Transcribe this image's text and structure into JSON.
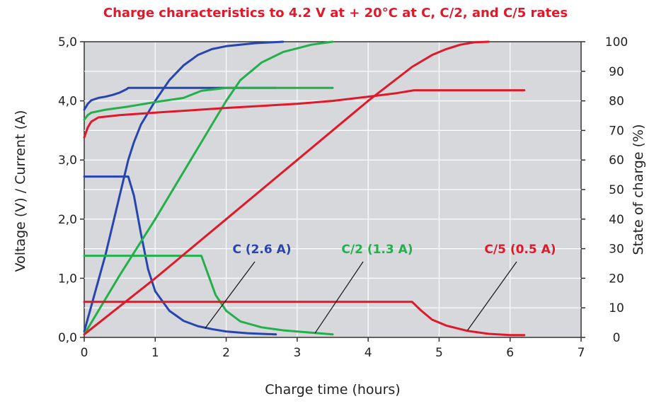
{
  "chart_data": {
    "type": "line",
    "title": "Charge characteristics to 4.2 V at + 20°C at C, C/2, and C/5 rates",
    "xlabel": "Charge time (hours)",
    "ylabel": "Voltage (V) / Current (A)",
    "y2label": "State of charge (%)",
    "xlim": [
      0,
      7
    ],
    "ylim": [
      0,
      5
    ],
    "y2lim": [
      0,
      100
    ],
    "x_ticks": [
      "0",
      "1",
      "2",
      "3",
      "4",
      "5",
      "6",
      "7"
    ],
    "y_ticks": [
      "0,0",
      "1,0",
      "2,0",
      "3,0",
      "4,0",
      "5,0"
    ],
    "y2_ticks": [
      "0",
      "10",
      "20",
      "30",
      "40",
      "50",
      "60",
      "70",
      "80",
      "90",
      "100"
    ],
    "grid": true,
    "colors": {
      "C": "#2745b0",
      "C/2": "#22b04b",
      "C/5": "#e0182a",
      "title": "#e0182a",
      "plot_bg": "#d6d8dc",
      "grid": "#ffffff"
    },
    "annotations": [
      {
        "text": "C (2.6 A)",
        "series_group": "C",
        "target": [
          1.7,
          0.15
        ]
      },
      {
        "text": "C/2 (1.3 A)",
        "series_group": "C/2",
        "target": [
          3.25,
          0.07
        ]
      },
      {
        "text": "C/5 (0.5 A)",
        "series_group": "C/5",
        "target": [
          5.4,
          0.12
        ]
      }
    ],
    "series": [
      {
        "group": "C",
        "quantity": "voltage",
        "axis": "left",
        "x": [
          0,
          0.05,
          0.1,
          0.2,
          0.3,
          0.4,
          0.5,
          0.6,
          0.62,
          1.0,
          2.0,
          2.7
        ],
        "y": [
          3.85,
          3.95,
          4.01,
          4.05,
          4.07,
          4.1,
          4.14,
          4.2,
          4.22,
          4.22,
          4.22,
          4.22
        ]
      },
      {
        "group": "C",
        "quantity": "current",
        "axis": "left",
        "x": [
          0,
          0.55,
          0.62,
          0.7,
          0.8,
          0.9,
          1.0,
          1.2,
          1.4,
          1.6,
          1.8,
          2.0,
          2.3,
          2.7
        ],
        "y": [
          2.72,
          2.72,
          2.72,
          2.4,
          1.75,
          1.15,
          0.78,
          0.45,
          0.28,
          0.19,
          0.14,
          0.1,
          0.07,
          0.05
        ]
      },
      {
        "group": "C",
        "quantity": "state_of_charge",
        "axis": "right",
        "x": [
          0,
          0.3,
          0.5,
          0.62,
          0.7,
          0.8,
          1.0,
          1.2,
          1.4,
          1.6,
          1.8,
          2.0,
          2.4,
          2.8
        ],
        "y": [
          2,
          28,
          48,
          60,
          66,
          72,
          80,
          87,
          92,
          95.5,
          97.5,
          98.5,
          99.5,
          100
        ]
      },
      {
        "group": "C/2",
        "quantity": "voltage",
        "axis": "left",
        "x": [
          0,
          0.05,
          0.1,
          0.3,
          0.6,
          1.0,
          1.4,
          1.65,
          2.0,
          3.0,
          3.5
        ],
        "y": [
          3.68,
          3.76,
          3.8,
          3.85,
          3.9,
          3.98,
          4.05,
          4.17,
          4.22,
          4.22,
          4.22
        ]
      },
      {
        "group": "C/2",
        "quantity": "current",
        "axis": "left",
        "x": [
          0,
          1.0,
          1.65,
          1.75,
          1.85,
          2.0,
          2.2,
          2.5,
          2.8,
          3.1,
          3.5
        ],
        "y": [
          1.38,
          1.38,
          1.38,
          1.05,
          0.72,
          0.45,
          0.27,
          0.17,
          0.12,
          0.09,
          0.05
        ]
      },
      {
        "group": "C/2",
        "quantity": "state_of_charge",
        "axis": "right",
        "x": [
          0,
          0.5,
          1.0,
          1.5,
          1.65,
          1.8,
          2.0,
          2.2,
          2.5,
          2.8,
          3.2,
          3.5
        ],
        "y": [
          1,
          21,
          40,
          60,
          66,
          72,
          80,
          87,
          93,
          96.5,
          99,
          100
        ]
      },
      {
        "group": "C/5",
        "quantity": "voltage",
        "axis": "left",
        "x": [
          0,
          0.05,
          0.1,
          0.2,
          0.5,
          1.0,
          2.0,
          3.0,
          3.5,
          4.0,
          4.4,
          4.65,
          5.0,
          6.0,
          6.2
        ],
        "y": [
          3.38,
          3.55,
          3.65,
          3.72,
          3.76,
          3.8,
          3.88,
          3.95,
          4.0,
          4.07,
          4.13,
          4.18,
          4.18,
          4.18,
          4.18
        ]
      },
      {
        "group": "C/5",
        "quantity": "current",
        "axis": "left",
        "x": [
          0,
          1.0,
          2.0,
          3.0,
          4.0,
          4.62,
          4.75,
          4.9,
          5.1,
          5.4,
          5.7,
          6.0,
          6.2
        ],
        "y": [
          0.6,
          0.6,
          0.6,
          0.6,
          0.6,
          0.6,
          0.45,
          0.3,
          0.2,
          0.11,
          0.06,
          0.04,
          0.04
        ]
      },
      {
        "group": "C/5",
        "quantity": "state_of_charge",
        "axis": "right",
        "x": [
          0,
          1.0,
          2.0,
          3.0,
          4.0,
          4.62,
          4.9,
          5.1,
          5.3,
          5.5,
          5.7
        ],
        "y": [
          1,
          20,
          40,
          60,
          80,
          91.5,
          95.5,
          97.5,
          99,
          99.8,
          100
        ]
      }
    ]
  }
}
